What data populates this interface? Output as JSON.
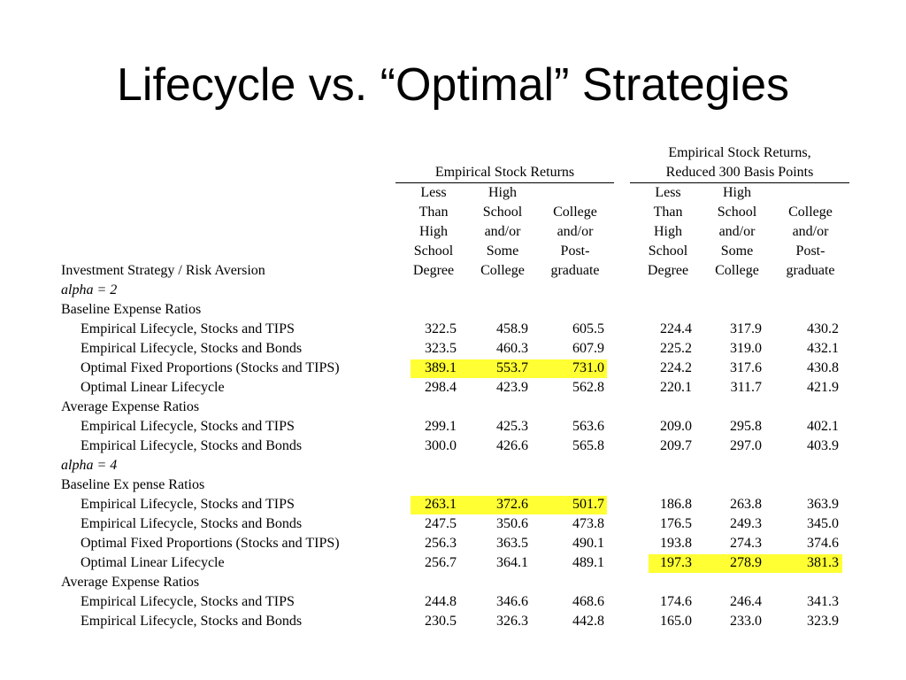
{
  "title": "Lifecycle vs. “Optimal” Strategies",
  "highlight_color": "#ffff33",
  "table": {
    "group1_label": "Empirical Stock Returns",
    "group2_label_line1": "Empirical Stock Returns,",
    "group2_label_line2": "Reduced 300 Basis Points",
    "row_header": "Investment Strategy / Risk Aversion",
    "col_headers": [
      [
        "Less",
        "Than",
        "High",
        "School",
        "Degree"
      ],
      [
        "High",
        "School",
        "and/or",
        "Some",
        "College"
      ],
      [
        "College",
        "and/or",
        "Post-",
        "graduate"
      ],
      [
        "Less",
        "Than",
        "High",
        "School",
        "Degree"
      ],
      [
        "High",
        "School",
        "and/or",
        "Some",
        "College"
      ],
      [
        "College",
        "and/or",
        "Post-",
        "graduate"
      ]
    ],
    "rows": [
      {
        "type": "alpha",
        "label": "alpha = 2"
      },
      {
        "type": "section",
        "label": "Baseline Expense Ratios"
      },
      {
        "type": "item",
        "label": "Empirical Lifecycle, Stocks and TIPS",
        "values": [
          "322.5",
          "458.9",
          "605.5",
          "224.4",
          "317.9",
          "430.2"
        ]
      },
      {
        "type": "item",
        "label": "Empirical Lifecycle, Stocks and Bonds",
        "values": [
          "323.5",
          "460.3",
          "607.9",
          "225.2",
          "319.0",
          "432.1"
        ]
      },
      {
        "type": "item",
        "label": "Optimal Fixed Proportions (Stocks and TIPS)",
        "values": [
          "389.1",
          "553.7",
          "731.0",
          "224.2",
          "317.6",
          "430.8"
        ],
        "highlight": "left"
      },
      {
        "type": "item",
        "label": "Optimal Linear Lifecycle",
        "values": [
          "298.4",
          "423.9",
          "562.8",
          "220.1",
          "311.7",
          "421.9"
        ]
      },
      {
        "type": "section",
        "label": "Average Expense Ratios"
      },
      {
        "type": "item",
        "label": "Empirical Lifecycle, Stocks and TIPS",
        "values": [
          "299.1",
          "425.3",
          "563.6",
          "209.0",
          "295.8",
          "402.1"
        ]
      },
      {
        "type": "item",
        "label": "Empirical Lifecycle, Stocks and Bonds",
        "values": [
          "300.0",
          "426.6",
          "565.8",
          "209.7",
          "297.0",
          "403.9"
        ]
      },
      {
        "type": "alpha",
        "label": "alpha = 4"
      },
      {
        "type": "section",
        "label": "Baseline Ex pense Ratios"
      },
      {
        "type": "item",
        "label": "Empirical Lifecycle, Stocks and TIPS",
        "values": [
          "263.1",
          "372.6",
          "501.7",
          "186.8",
          "263.8",
          "363.9"
        ],
        "highlight": "left"
      },
      {
        "type": "item",
        "label": "Empirical Lifecycle, Stocks and Bonds",
        "values": [
          "247.5",
          "350.6",
          "473.8",
          "176.5",
          "249.3",
          "345.0"
        ]
      },
      {
        "type": "item",
        "label": "Optimal Fixed Proportions (Stocks and TIPS)",
        "values": [
          "256.3",
          "363.5",
          "490.1",
          "193.8",
          "274.3",
          "374.6"
        ]
      },
      {
        "type": "item",
        "label": "Optimal Linear Lifecycle",
        "values": [
          "256.7",
          "364.1",
          "489.1",
          "197.3",
          "278.9",
          "381.3"
        ],
        "highlight": "right"
      },
      {
        "type": "section",
        "label": "Average Expense Ratios"
      },
      {
        "type": "item",
        "label": "Empirical Lifecycle, Stocks and TIPS",
        "values": [
          "244.8",
          "346.6",
          "468.6",
          "174.6",
          "246.4",
          "341.3"
        ]
      },
      {
        "type": "item",
        "label": "Empirical Lifecycle, Stocks and Bonds",
        "values": [
          "230.5",
          "326.3",
          "442.8",
          "165.0",
          "233.0",
          "323.9"
        ]
      }
    ]
  }
}
